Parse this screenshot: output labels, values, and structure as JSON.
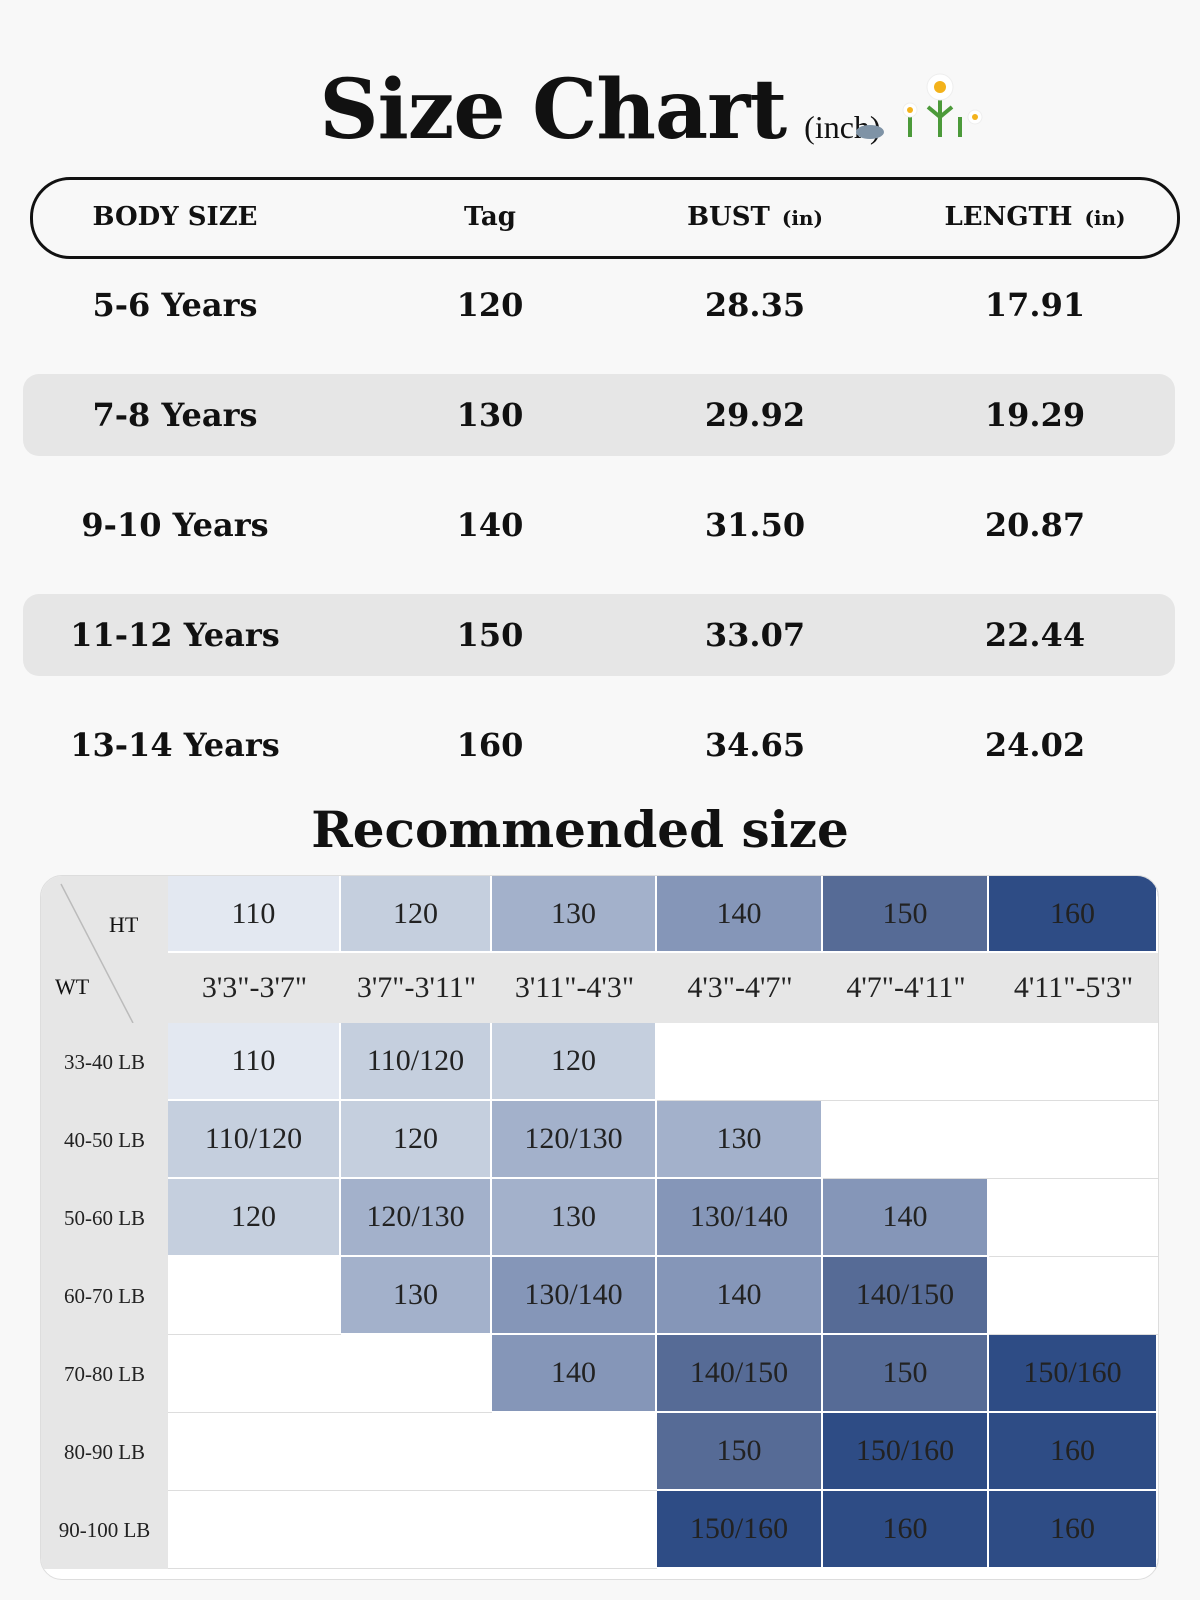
{
  "header": {
    "title": "Size Chart",
    "unit": "(inch)"
  },
  "size_table": {
    "columns": [
      {
        "label": "BODY SIZE"
      },
      {
        "label": "Tag"
      },
      {
        "label": "BUST",
        "unit": "(in)"
      },
      {
        "label": "LENGTH",
        "unit": "(in)"
      }
    ],
    "rows": [
      [
        "5-6 Years",
        "120",
        "28.35",
        "17.91"
      ],
      [
        "7-8 Years",
        "130",
        "29.92",
        "19.29"
      ],
      [
        "9-10 Years",
        "140",
        "31.50",
        "20.87"
      ],
      [
        "11-12 Years",
        "150",
        "33.07",
        "22.44"
      ],
      [
        "13-14 Years",
        "160",
        "34.65",
        "24.02"
      ]
    ]
  },
  "recommended": {
    "title": "Recommended size",
    "height_label": "HT",
    "weight_label": "WT",
    "tags": [
      "110",
      "120",
      "130",
      "140",
      "150",
      "160"
    ],
    "colors": [
      "#e3e8f1",
      "#c5cfde",
      "#a3b1cb",
      "#8596b8",
      "#566b96",
      "#2e4c85"
    ],
    "heights": [
      "3'3\"-3'7\"",
      "3'7\"-3'11\"",
      "3'11\"-4'3\"",
      "4'3\"-4'7\"",
      "4'7\"-4'11\"",
      "4'11\"-5'3\""
    ],
    "weights": [
      "33-40 LB",
      "40-50 LB",
      "50-60 LB",
      "60-70 LB",
      "70-80 LB",
      "80-90 LB",
      "90-100 LB"
    ],
    "cells": [
      [
        "110",
        "110/120",
        "120",
        null,
        null,
        null
      ],
      [
        "110/120",
        "120",
        "120/130",
        "130",
        null,
        null
      ],
      [
        "120",
        "120/130",
        "130",
        "130/140",
        "140",
        null
      ],
      [
        null,
        "130",
        "130/140",
        "140",
        "140/150",
        null
      ],
      [
        null,
        null,
        "140",
        "140/150",
        "150",
        "150/160"
      ],
      [
        null,
        null,
        null,
        "150",
        "150/160",
        "160"
      ],
      [
        null,
        null,
        null,
        "150/160",
        "160",
        "160"
      ]
    ]
  }
}
